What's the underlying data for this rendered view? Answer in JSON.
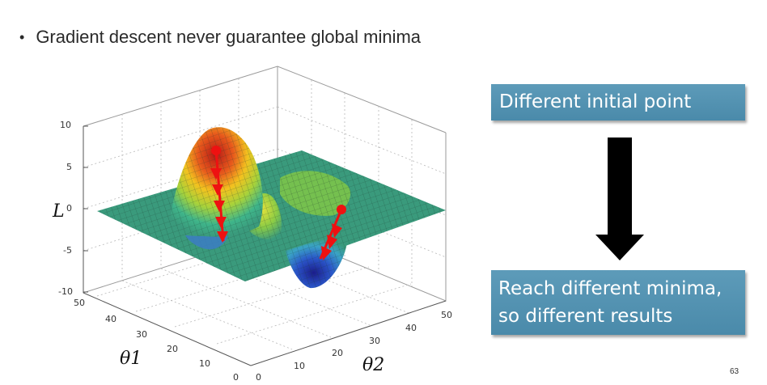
{
  "slide": {
    "bullet_text": "Gradient descent never guarantee global minima",
    "bullet_char": "•",
    "page_number": "63"
  },
  "figure": {
    "z_axis_label": "L",
    "x_axis_label": "θ1",
    "y_axis_label": "θ2",
    "z_ticks": [
      "10",
      "5",
      "0",
      "-5",
      "-10"
    ],
    "theta1_ticks": [
      "50",
      "40",
      "30",
      "20",
      "10",
      "0"
    ],
    "theta2_ticks": [
      "0",
      "10",
      "20",
      "30",
      "40",
      "50"
    ]
  },
  "callouts": {
    "top_text": "Different initial point",
    "bottom_line1": "Reach different minima,",
    "bottom_line2": "so different results"
  },
  "colors": {
    "callout_fill": "#5085a5",
    "arrow_red": "#ee1111",
    "surface_plane": "#3a9a7c",
    "big_arrow": "#000000"
  }
}
